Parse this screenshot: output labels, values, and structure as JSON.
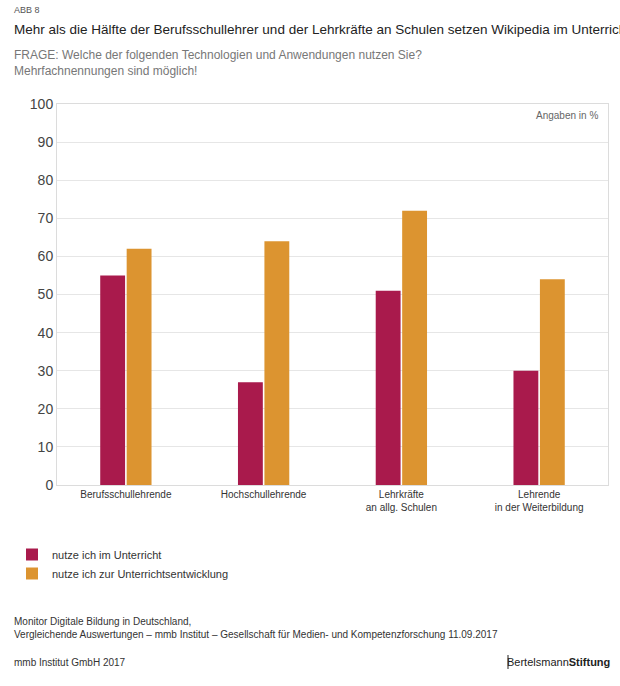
{
  "chart_data": {
    "type": "bar",
    "figure_label": "ABB 8",
    "title": "Mehr als die Hälfte der Berufsschullehrer und der Lehrkräfte an Schulen setzen Wikipedia im Unterricht ein.",
    "subtitle": "FRAGE: Welche der folgenden Technologien und Anwendungen nutzen Sie?\nMehrfachnennungen sind möglich!",
    "note": "Angaben in %",
    "categories": [
      "Berufsschullehrende",
      "Hochschullehrende",
      "Lehrkräfte\nan allg. Schulen",
      "Lehrende\nin der Weiterbildung"
    ],
    "series": [
      {
        "name": "nutze ich im Unterricht",
        "color": "#a91a4c",
        "values": [
          55,
          27,
          51,
          30
        ]
      },
      {
        "name": "nutze ich zur Unterrichtsentwicklung",
        "color": "#dc9430",
        "values": [
          62,
          64,
          72,
          54
        ]
      }
    ],
    "ylim": [
      0,
      100
    ],
    "yticks": [
      0,
      10,
      20,
      30,
      40,
      50,
      60,
      70,
      80,
      90,
      100
    ],
    "grid": true,
    "legend": "bottom-left",
    "source": "Monitor Digitale Bildung in Deutschland,\nVergleichende Auswertungen – mmb Institut – Gesellschaft für Medien- und Kompetenzforschung 11.09.2017",
    "credits": "mmb Institut GmbH 2017",
    "publisher": [
      "Bertelsmann",
      "Stiftung"
    ]
  }
}
